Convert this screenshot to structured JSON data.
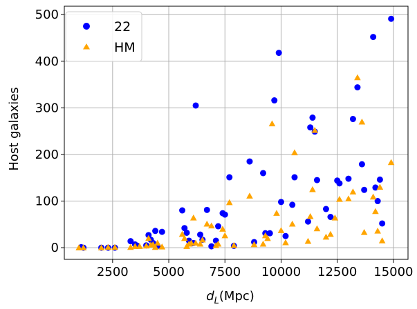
{
  "chart_data": {
    "type": "scatter",
    "xlabel_main": "d",
    "xlabel_sub": "L",
    "xlabel_unit": "(Mpc)",
    "ylabel": "Host galaxies",
    "xlim": [
      350,
      15650
    ],
    "ylim": [
      -25,
      518
    ],
    "xticks": [
      2500,
      5000,
      7500,
      10000,
      12500,
      15000
    ],
    "yticks": [
      0,
      100,
      200,
      300,
      400,
      500
    ],
    "grid": true,
    "legend_position": "top-left",
    "series": [
      {
        "name": "22",
        "marker": "circle",
        "color": "#0000ff",
        "points": [
          [
            1100,
            1
          ],
          [
            1200,
            0
          ],
          [
            2000,
            0
          ],
          [
            2300,
            0
          ],
          [
            2600,
            0
          ],
          [
            3300,
            14
          ],
          [
            3500,
            7
          ],
          [
            3600,
            4
          ],
          [
            4000,
            5
          ],
          [
            4100,
            27
          ],
          [
            4200,
            17
          ],
          [
            4300,
            10
          ],
          [
            4400,
            36
          ],
          [
            4500,
            4
          ],
          [
            4700,
            34
          ],
          [
            5600,
            80
          ],
          [
            5700,
            42
          ],
          [
            5800,
            32
          ],
          [
            5900,
            15
          ],
          [
            6000,
            9
          ],
          [
            6100,
            10
          ],
          [
            6200,
            305
          ],
          [
            6400,
            28
          ],
          [
            6500,
            17
          ],
          [
            6700,
            81
          ],
          [
            6900,
            3
          ],
          [
            7100,
            15
          ],
          [
            7200,
            46
          ],
          [
            7400,
            74
          ],
          [
            7500,
            71
          ],
          [
            7700,
            151
          ],
          [
            7900,
            4
          ],
          [
            8600,
            185
          ],
          [
            8800,
            12
          ],
          [
            9200,
            160
          ],
          [
            9300,
            31
          ],
          [
            9500,
            31
          ],
          [
            9700,
            316
          ],
          [
            9900,
            418
          ],
          [
            10000,
            98
          ],
          [
            10200,
            25
          ],
          [
            10500,
            92
          ],
          [
            10600,
            151
          ],
          [
            11200,
            56
          ],
          [
            11300,
            258
          ],
          [
            11400,
            279
          ],
          [
            11500,
            249
          ],
          [
            11600,
            145
          ],
          [
            12000,
            83
          ],
          [
            12200,
            66
          ],
          [
            12500,
            144
          ],
          [
            12600,
            138
          ],
          [
            13000,
            148
          ],
          [
            13200,
            276
          ],
          [
            13400,
            344
          ],
          [
            13600,
            179
          ],
          [
            13700,
            124
          ],
          [
            14100,
            452
          ],
          [
            14200,
            129
          ],
          [
            14300,
            100
          ],
          [
            14400,
            146
          ],
          [
            14500,
            52
          ],
          [
            14900,
            491
          ]
        ]
      },
      {
        "name": "HM",
        "marker": "triangle",
        "color": "#ffa500",
        "points": [
          [
            1000,
            0
          ],
          [
            1200,
            0
          ],
          [
            2000,
            0
          ],
          [
            2300,
            1
          ],
          [
            2600,
            1
          ],
          [
            3300,
            1
          ],
          [
            3500,
            3
          ],
          [
            3700,
            3
          ],
          [
            4000,
            4
          ],
          [
            4100,
            20
          ],
          [
            4200,
            6
          ],
          [
            4300,
            7
          ],
          [
            4400,
            1
          ],
          [
            4500,
            10
          ],
          [
            4700,
            2
          ],
          [
            5600,
            29
          ],
          [
            5700,
            20
          ],
          [
            5800,
            3
          ],
          [
            5900,
            8
          ],
          [
            6000,
            10
          ],
          [
            6100,
            64
          ],
          [
            6200,
            10
          ],
          [
            6400,
            8
          ],
          [
            6500,
            17
          ],
          [
            6700,
            51
          ],
          [
            6900,
            47
          ],
          [
            7100,
            5
          ],
          [
            7200,
            8
          ],
          [
            7400,
            40
          ],
          [
            7500,
            26
          ],
          [
            7700,
            97
          ],
          [
            7900,
            5
          ],
          [
            8600,
            111
          ],
          [
            8800,
            7
          ],
          [
            9200,
            8
          ],
          [
            9300,
            26
          ],
          [
            9400,
            20
          ],
          [
            9600,
            266
          ],
          [
            9800,
            74
          ],
          [
            10000,
            37
          ],
          [
            10200,
            11
          ],
          [
            10500,
            51
          ],
          [
            10600,
            204
          ],
          [
            11200,
            14
          ],
          [
            11300,
            67
          ],
          [
            11400,
            125
          ],
          [
            11500,
            252
          ],
          [
            11600,
            41
          ],
          [
            12000,
            23
          ],
          [
            12200,
            29
          ],
          [
            12400,
            64
          ],
          [
            12600,
            104
          ],
          [
            13000,
            105
          ],
          [
            13200,
            120
          ],
          [
            13400,
            365
          ],
          [
            13600,
            270
          ],
          [
            13700,
            33
          ],
          [
            14100,
            109
          ],
          [
            14200,
            78
          ],
          [
            14300,
            36
          ],
          [
            14400,
            130
          ],
          [
            14500,
            15
          ],
          [
            14900,
            183
          ]
        ]
      }
    ]
  }
}
